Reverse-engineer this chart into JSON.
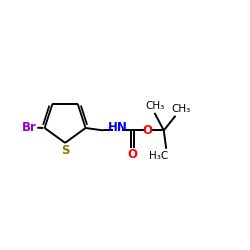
{
  "bg_color": "#ffffff",
  "bond_color": "#000000",
  "br_color": "#9400d3",
  "s_color": "#808000",
  "n_color": "#0000ff",
  "o_color": "#ff0000",
  "figsize": [
    2.5,
    2.5
  ],
  "dpi": 100,
  "xlim": [
    0,
    10
  ],
  "ylim": [
    0,
    10
  ],
  "lw": 1.4,
  "font_size_atom": 8.5,
  "font_size_small": 7.5
}
